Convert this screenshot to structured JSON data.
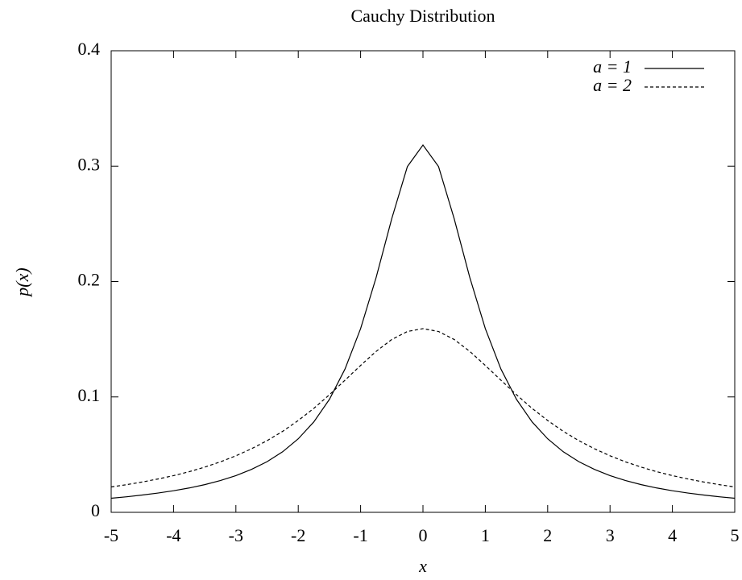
{
  "chart_data": {
    "type": "line",
    "title": "Cauchy Distribution",
    "xlabel": "x",
    "ylabel": "p(x)",
    "x": [
      -5,
      -4.75,
      -4.5,
      -4.25,
      -4,
      -3.75,
      -3.5,
      -3.25,
      -3,
      -2.75,
      -2.5,
      -2.25,
      -2,
      -1.75,
      -1.5,
      -1.25,
      -1,
      -0.75,
      -0.5,
      -0.25,
      0,
      0.25,
      0.5,
      0.75,
      1,
      1.25,
      1.5,
      1.75,
      2,
      2.25,
      2.5,
      2.75,
      3,
      3.25,
      3.5,
      3.75,
      4,
      4.25,
      4.5,
      4.75,
      5
    ],
    "series": [
      {
        "name": "a = 1",
        "color": "#000000",
        "line_style": "solid",
        "values": [
          0.0122,
          0.0135,
          0.015,
          0.0167,
          0.0187,
          0.0211,
          0.024,
          0.0275,
          0.0318,
          0.0372,
          0.0439,
          0.0525,
          0.0637,
          0.0784,
          0.0979,
          0.1242,
          0.1592,
          0.2037,
          0.2546,
          0.2996,
          0.3183,
          0.2996,
          0.2546,
          0.2037,
          0.1592,
          0.1242,
          0.0979,
          0.0784,
          0.0637,
          0.0525,
          0.0439,
          0.0372,
          0.0318,
          0.0275,
          0.024,
          0.0211,
          0.0187,
          0.0167,
          0.015,
          0.0135,
          0.0122
        ]
      },
      {
        "name": "a = 2",
        "color": "#000000",
        "line_style": "dashed",
        "values": [
          0.022,
          0.024,
          0.0263,
          0.0289,
          0.0318,
          0.0352,
          0.0392,
          0.0437,
          0.049,
          0.0551,
          0.0621,
          0.0702,
          0.0796,
          0.0901,
          0.1019,
          0.1145,
          0.1273,
          0.1395,
          0.1498,
          0.1567,
          0.1592,
          0.1567,
          0.1498,
          0.1395,
          0.1273,
          0.1145,
          0.1019,
          0.0901,
          0.0796,
          0.0702,
          0.0621,
          0.0551,
          0.049,
          0.0437,
          0.0392,
          0.0352,
          0.0318,
          0.0289,
          0.0263,
          0.024,
          0.022
        ]
      }
    ],
    "xlim": [
      -5,
      5
    ],
    "xticks": [
      -5,
      -4,
      -3,
      -2,
      -1,
      0,
      1,
      2,
      3,
      4,
      5
    ],
    "ylim": [
      0,
      0.4
    ],
    "yticks": [
      0,
      0.1,
      0.2,
      0.3,
      0.4
    ],
    "legend": "upper right",
    "grid": false
  }
}
